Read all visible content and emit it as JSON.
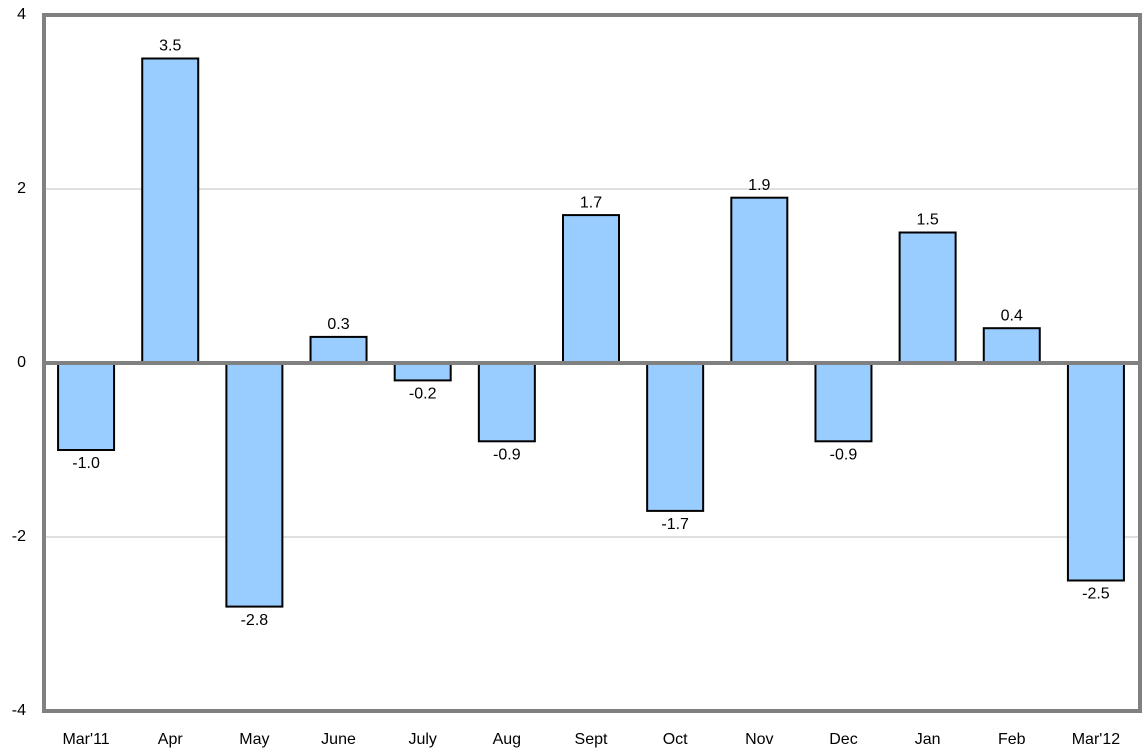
{
  "chart_data": {
    "type": "bar",
    "categories": [
      "Mar'11",
      "Apr",
      "May",
      "June",
      "July",
      "Aug",
      "Sept",
      "Oct",
      "Nov",
      "Dec",
      "Jan",
      "Feb",
      "Mar'12"
    ],
    "values": [
      -1.0,
      3.5,
      -2.8,
      0.3,
      -0.2,
      -0.9,
      1.7,
      -1.7,
      1.9,
      -0.9,
      1.5,
      0.4,
      -2.5
    ],
    "value_labels": [
      "-1.0",
      "3.5",
      "-2.8",
      "0.3",
      "-0.2",
      "-0.9",
      "1.7",
      "-1.7",
      "1.9",
      "-0.9",
      "1.5",
      "0.4",
      "-2.5"
    ],
    "color": "#99ccff",
    "ylim": [
      -4,
      4
    ],
    "yticks": [
      -4,
      -2,
      0,
      2,
      4
    ],
    "grid": true
  }
}
